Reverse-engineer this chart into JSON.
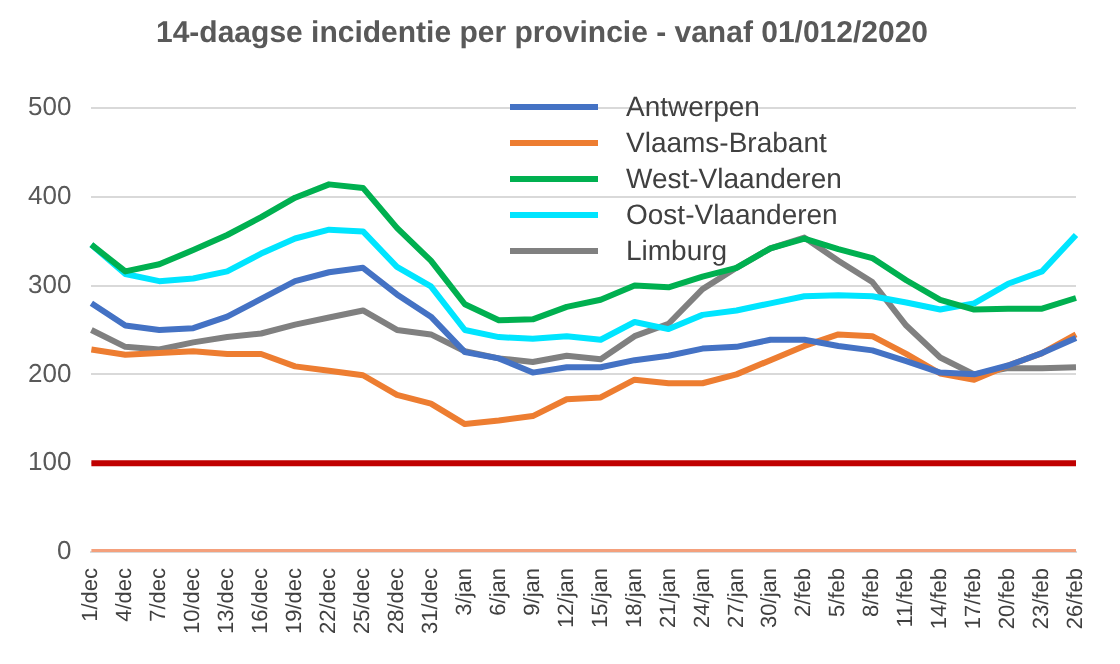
{
  "chart_data": {
    "type": "line",
    "title": "14-daagse incidentie per provincie - vanaf 01/012/2020",
    "categories": [
      "1/dec",
      "4/dec",
      "7/dec",
      "10/dec",
      "13/dec",
      "16/dec",
      "19/dec",
      "22/dec",
      "25/dec",
      "28/dec",
      "31/dec",
      "3/jan",
      "6/jan",
      "9/jan",
      "12/jan",
      "15/jan",
      "18/jan",
      "21/jan",
      "24/jan",
      "27/jan",
      "30/jan",
      "2/feb",
      "5/feb",
      "8/feb",
      "11/feb",
      "14/feb",
      "17/feb",
      "20/feb",
      "23/feb",
      "26/feb"
    ],
    "series": [
      {
        "name": "Antwerpen",
        "color": "#4472c4",
        "values": [
          280,
          255,
          250,
          252,
          265,
          285,
          305,
          315,
          320,
          290,
          265,
          225,
          218,
          202,
          208,
          208,
          216,
          221,
          229,
          231,
          239,
          239,
          232,
          227,
          215,
          202,
          200,
          210,
          224,
          241
        ]
      },
      {
        "name": "Vlaams-Brabant",
        "color": "#ed7d31",
        "values": [
          228,
          222,
          224,
          226,
          223,
          223,
          209,
          204,
          199,
          177,
          167,
          144,
          148,
          153,
          172,
          174,
          194,
          190,
          190,
          200,
          216,
          232,
          245,
          243,
          223,
          201,
          194,
          210,
          224,
          245
        ]
      },
      {
        "name": "West-Vlaanderen",
        "color": "#00b050",
        "values": [
          346,
          316,
          324,
          340,
          357,
          377,
          399,
          414,
          410,
          365,
          328,
          279,
          261,
          262,
          276,
          284,
          300,
          298,
          310,
          320,
          342,
          353,
          341,
          331,
          306,
          284,
          273,
          274,
          274,
          286
        ]
      },
      {
        "name": "Oost-Vlaanderen",
        "color": "#00e5ff",
        "values": [
          346,
          313,
          305,
          308,
          316,
          336,
          353,
          363,
          361,
          321,
          299,
          250,
          242,
          240,
          243,
          239,
          259,
          251,
          267,
          272,
          280,
          288,
          289,
          288,
          281,
          273,
          280,
          302,
          316,
          357
        ]
      },
      {
        "name": "Limburg",
        "color": "#808080",
        "values": [
          250,
          231,
          228,
          236,
          242,
          246,
          256,
          264,
          272,
          250,
          245,
          226,
          218,
          214,
          221,
          217,
          243,
          257,
          296,
          320,
          342,
          354,
          328,
          304,
          255,
          219,
          200,
          207,
          207,
          208
        ]
      },
      {
        "color": "#f4a07c",
        "values": [
          0,
          0,
          0,
          0,
          0,
          0,
          0,
          0,
          0,
          0,
          0,
          0,
          0,
          0,
          0,
          0,
          0,
          0,
          0,
          0,
          0,
          0,
          0,
          0,
          0,
          0,
          0,
          0,
          0,
          0
        ]
      }
    ],
    "ylim": [
      0,
      500
    ],
    "yticks": [
      0,
      100,
      200,
      300,
      400,
      500
    ],
    "grid": "y",
    "legend": "top",
    "marker": "none",
    "line_style": "solid",
    "ref_lines": [
      {
        "axis": "y",
        "value": 100,
        "color": "#c00000"
      }
    ]
  }
}
